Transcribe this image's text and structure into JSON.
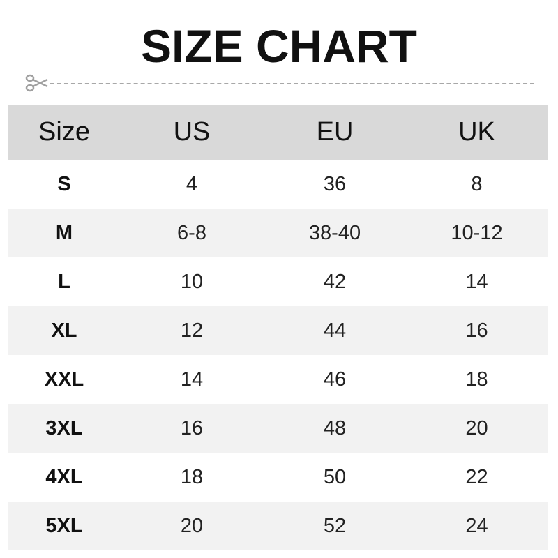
{
  "title": "SIZE CHART",
  "icons": {
    "cut": "scissors-icon"
  },
  "colors": {
    "header_bg": "#d9d9d9",
    "alt_row_bg": "#f2f2f2",
    "cut_line": "#a8a8a8"
  },
  "table": {
    "headers": [
      "Size",
      "US",
      "EU",
      "UK"
    ],
    "rows": [
      [
        "S",
        "4",
        "36",
        "8"
      ],
      [
        "M",
        "6-8",
        "38-40",
        "10-12"
      ],
      [
        "L",
        "10",
        "42",
        "14"
      ],
      [
        "XL",
        "12",
        "44",
        "16"
      ],
      [
        "XXL",
        "14",
        "46",
        "18"
      ],
      [
        "3XL",
        "16",
        "48",
        "20"
      ],
      [
        "4XL",
        "18",
        "50",
        "22"
      ],
      [
        "5XL",
        "20",
        "52",
        "24"
      ]
    ]
  }
}
